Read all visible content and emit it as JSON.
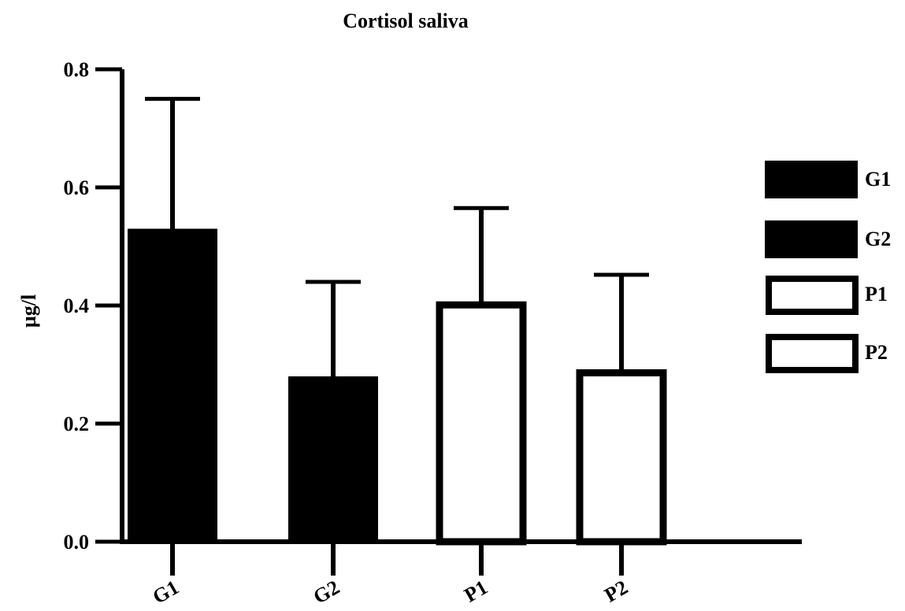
{
  "chart_data": {
    "type": "bar",
    "title": "Cortisol saliva",
    "xlabel": "",
    "ylabel": "µg/l",
    "categories": [
      "G1",
      "G2",
      "P1",
      "P2"
    ],
    "values": [
      0.53,
      0.28,
      0.405,
      0.29
    ],
    "error_upper": [
      0.75,
      0.44,
      0.565,
      0.452
    ],
    "fill": [
      "#000000",
      "#000000",
      "#ffffff",
      "#ffffff"
    ],
    "ylim": [
      0,
      0.8
    ],
    "yticks": [
      0.0,
      0.2,
      0.4,
      0.6,
      0.8
    ],
    "ytick_labels": [
      "0.0",
      "0.2",
      "0.4",
      "0.6",
      "0.8"
    ],
    "grid": false,
    "legend": {
      "position": "right",
      "entries": [
        {
          "label": "G1",
          "fill": "#000000"
        },
        {
          "label": "G2",
          "fill": "#000000"
        },
        {
          "label": "P1",
          "fill": "#ffffff"
        },
        {
          "label": "P2",
          "fill": "#ffffff"
        }
      ]
    },
    "colors": {
      "stroke": "#000000",
      "background": "#ffffff"
    }
  }
}
